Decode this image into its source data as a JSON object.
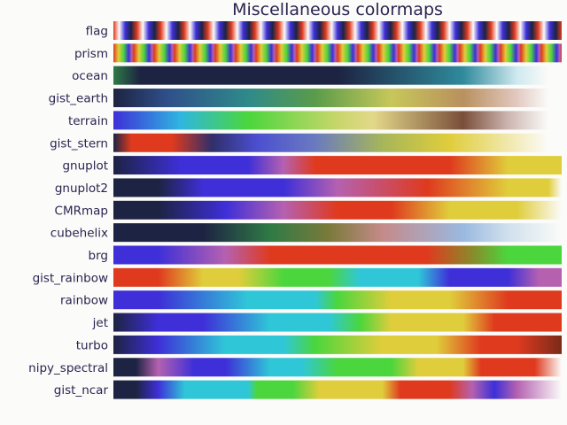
{
  "chart_data": {
    "type": "heatmap",
    "title": "Miscellaneous colormaps",
    "colormaps": [
      {
        "name": "flag",
        "kind": "repeat",
        "stops": [
          [
            "#df3a1e",
            0
          ],
          [
            "#fbfbf9",
            0.25
          ],
          [
            "#3e2fd8",
            0.5
          ],
          [
            "#1d2342",
            0.75
          ],
          [
            "#df3a1e",
            1
          ]
        ],
        "cycles": 19
      },
      {
        "name": "prism",
        "kind": "repeat",
        "stops": [
          [
            "#df3a1e",
            0
          ],
          [
            "#e0cd3b",
            0.25
          ],
          [
            "#4bd63d",
            0.5
          ],
          [
            "#3e2fd8",
            0.75
          ],
          [
            "#b561b0",
            0.9
          ],
          [
            "#df3a1e",
            1
          ]
        ],
        "cycles": 22
      },
      {
        "name": "ocean",
        "kind": "grad",
        "stops": [
          [
            "#2f7a46",
            0
          ],
          [
            "#1d2342",
            0.06
          ],
          [
            "#1d2342",
            0.5
          ],
          [
            "#2f8a9c",
            0.78
          ],
          [
            "#cfe9ef",
            0.9
          ],
          [
            "#fbfbf9",
            0.97
          ]
        ]
      },
      {
        "name": "gist_earth",
        "kind": "grad",
        "stops": [
          [
            "#1d2342",
            0
          ],
          [
            "#2f4f8a",
            0.12
          ],
          [
            "#2f8a8a",
            0.3
          ],
          [
            "#5a9c4a",
            0.45
          ],
          [
            "#c7c75a",
            0.62
          ],
          [
            "#b9905e",
            0.78
          ],
          [
            "#e2c9c0",
            0.9
          ],
          [
            "#fbfbf9",
            0.97
          ]
        ]
      },
      {
        "name": "terrain",
        "kind": "grad",
        "stops": [
          [
            "#3e2fd8",
            0
          ],
          [
            "#2fb6e0",
            0.15
          ],
          [
            "#4bd63d",
            0.3
          ],
          [
            "#c8d66a",
            0.5
          ],
          [
            "#e3d88a",
            0.58
          ],
          [
            "#7a4e3a",
            0.78
          ],
          [
            "#cdb5b0",
            0.88
          ],
          [
            "#fbfbf9",
            0.97
          ]
        ]
      },
      {
        "name": "gist_stern",
        "kind": "grad",
        "stops": [
          [
            "#1d2342",
            0
          ],
          [
            "#df3a1e",
            0.04
          ],
          [
            "#df3a1e",
            0.13
          ],
          [
            "#2f2f6a",
            0.22
          ],
          [
            "#4b4fd0",
            0.32
          ],
          [
            "#6a7ac0",
            0.45
          ],
          [
            "#a6b65a",
            0.6
          ],
          [
            "#e0cd3b",
            0.75
          ],
          [
            "#fbfbf9",
            0.97
          ]
        ]
      },
      {
        "name": "gnuplot",
        "kind": "grad",
        "stops": [
          [
            "#1d2342",
            0
          ],
          [
            "#3e2fd8",
            0.15
          ],
          [
            "#3e2fd8",
            0.3
          ],
          [
            "#b561b0",
            0.38
          ],
          [
            "#df3a1e",
            0.45
          ],
          [
            "#df3a1e",
            0.75
          ],
          [
            "#e0cd3b",
            0.88
          ],
          [
            "#e0cd3b",
            1
          ]
        ]
      },
      {
        "name": "gnuplot2",
        "kind": "grad",
        "stops": [
          [
            "#1d2342",
            0
          ],
          [
            "#1d2342",
            0.1
          ],
          [
            "#3e2fd8",
            0.2
          ],
          [
            "#3e2fd8",
            0.38
          ],
          [
            "#b561b0",
            0.5
          ],
          [
            "#df3a1e",
            0.7
          ],
          [
            "#e0cd3b",
            0.88
          ],
          [
            "#e0cd3b",
            0.97
          ],
          [
            "#fbfbf9",
            1
          ]
        ]
      },
      {
        "name": "CMRmap",
        "kind": "grad",
        "stops": [
          [
            "#1d2342",
            0
          ],
          [
            "#1d2342",
            0.1
          ],
          [
            "#3e2fd8",
            0.25
          ],
          [
            "#b561b0",
            0.38
          ],
          [
            "#df3a1e",
            0.5
          ],
          [
            "#df3a1e",
            0.62
          ],
          [
            "#e0cd3b",
            0.75
          ],
          [
            "#e0cd3b",
            0.9
          ],
          [
            "#fbfbf9",
            1
          ]
        ]
      },
      {
        "name": "cubehelix",
        "kind": "grad",
        "stops": [
          [
            "#1d2342",
            0
          ],
          [
            "#1d2342",
            0.2
          ],
          [
            "#2f7a46",
            0.35
          ],
          [
            "#7a7a3a",
            0.48
          ],
          [
            "#c58a8a",
            0.6
          ],
          [
            "#9ab9e0",
            0.78
          ],
          [
            "#d0e0ec",
            0.88
          ],
          [
            "#fbfbf9",
            1
          ]
        ]
      },
      {
        "name": "brg",
        "kind": "grad",
        "stops": [
          [
            "#3e2fd8",
            0
          ],
          [
            "#3e2fd8",
            0.1
          ],
          [
            "#b561b0",
            0.25
          ],
          [
            "#df3a1e",
            0.35
          ],
          [
            "#df3a1e",
            0.5
          ],
          [
            "#df3a1e",
            0.7
          ],
          [
            "#8a8a2a",
            0.8
          ],
          [
            "#4bd63d",
            0.88
          ],
          [
            "#4bd63d",
            1
          ]
        ]
      },
      {
        "name": "gist_rainbow",
        "kind": "grad",
        "stops": [
          [
            "#df3a1e",
            0
          ],
          [
            "#df3a1e",
            0.1
          ],
          [
            "#e0cd3b",
            0.2
          ],
          [
            "#e0cd3b",
            0.28
          ],
          [
            "#4bd63d",
            0.38
          ],
          [
            "#4bd63d",
            0.48
          ],
          [
            "#2fc7d8",
            0.55
          ],
          [
            "#2fc7d8",
            0.68
          ],
          [
            "#3e2fd8",
            0.75
          ],
          [
            "#3e2fd8",
            0.88
          ],
          [
            "#b561b0",
            0.95
          ],
          [
            "#b561b0",
            1
          ]
        ]
      },
      {
        "name": "rainbow",
        "kind": "grad",
        "stops": [
          [
            "#3e2fd8",
            0
          ],
          [
            "#3e2fd8",
            0.1
          ],
          [
            "#2fc7d8",
            0.3
          ],
          [
            "#2fc7d8",
            0.45
          ],
          [
            "#4bd63d",
            0.5
          ],
          [
            "#e0cd3b",
            0.62
          ],
          [
            "#e0cd3b",
            0.75
          ],
          [
            "#df3a1e",
            0.88
          ],
          [
            "#df3a1e",
            1
          ]
        ]
      },
      {
        "name": "jet",
        "kind": "grad",
        "stops": [
          [
            "#1d2342",
            0
          ],
          [
            "#3e2fd8",
            0.1
          ],
          [
            "#3e2fd8",
            0.2
          ],
          [
            "#2fc7d8",
            0.35
          ],
          [
            "#2fc7d8",
            0.48
          ],
          [
            "#4bd63d",
            0.55
          ],
          [
            "#e0cd3b",
            0.62
          ],
          [
            "#e0cd3b",
            0.78
          ],
          [
            "#df3a1e",
            0.85
          ],
          [
            "#df3a1e",
            1
          ]
        ]
      },
      {
        "name": "turbo",
        "kind": "grad",
        "stops": [
          [
            "#1d2342",
            0
          ],
          [
            "#3e2fd8",
            0.1
          ],
          [
            "#2fc7d8",
            0.25
          ],
          [
            "#2fc7d8",
            0.38
          ],
          [
            "#4bd63d",
            0.45
          ],
          [
            "#e0cd3b",
            0.6
          ],
          [
            "#e0cd3b",
            0.72
          ],
          [
            "#df3a1e",
            0.82
          ],
          [
            "#df3a1e",
            0.9
          ],
          [
            "#7a2a1a",
            1
          ]
        ]
      },
      {
        "name": "nipy_spectral",
        "kind": "grad",
        "stops": [
          [
            "#1d2342",
            0
          ],
          [
            "#1d2342",
            0.05
          ],
          [
            "#b561b0",
            0.1
          ],
          [
            "#3e2fd8",
            0.18
          ],
          [
            "#3e2fd8",
            0.25
          ],
          [
            "#2fc7d8",
            0.35
          ],
          [
            "#2fc7d8",
            0.42
          ],
          [
            "#4bd63d",
            0.5
          ],
          [
            "#4bd63d",
            0.62
          ],
          [
            "#e0cd3b",
            0.68
          ],
          [
            "#e0cd3b",
            0.78
          ],
          [
            "#df3a1e",
            0.82
          ],
          [
            "#df3a1e",
            0.94
          ],
          [
            "#fbfbf9",
            1
          ]
        ]
      },
      {
        "name": "gist_ncar",
        "kind": "grad",
        "stops": [
          [
            "#1d2342",
            0
          ],
          [
            "#1d2342",
            0.05
          ],
          [
            "#3e2fd8",
            0.1
          ],
          [
            "#2fc7d8",
            0.16
          ],
          [
            "#2fc7d8",
            0.3
          ],
          [
            "#4bd63d",
            0.32
          ],
          [
            "#4bd63d",
            0.4
          ],
          [
            "#e0cd3b",
            0.46
          ],
          [
            "#e0cd3b",
            0.6
          ],
          [
            "#df3a1e",
            0.64
          ],
          [
            "#df3a1e",
            0.75
          ],
          [
            "#b561b0",
            0.8
          ],
          [
            "#3e2fd8",
            0.85
          ],
          [
            "#b561b0",
            0.9
          ],
          [
            "#fbfbf9",
            1
          ]
        ]
      }
    ]
  }
}
